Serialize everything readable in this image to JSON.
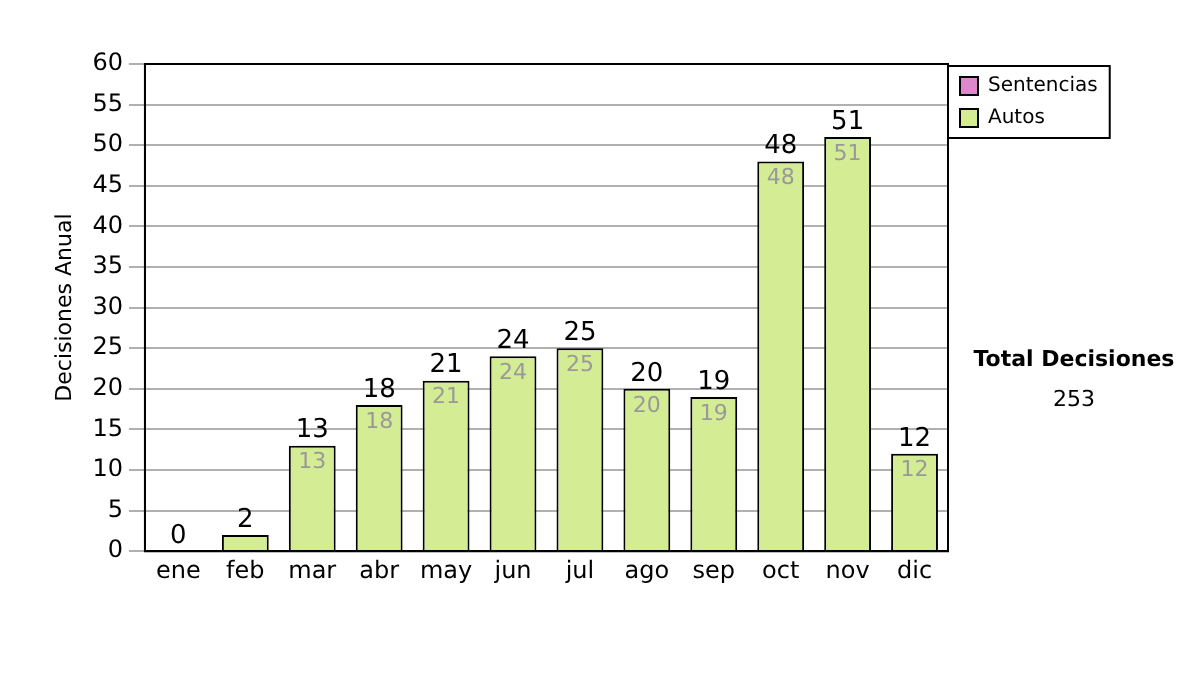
{
  "chart_data": {
    "type": "bar",
    "stacked": true,
    "ylabel": "Decisiones Anual",
    "categories": [
      "ene",
      "feb",
      "mar",
      "abr",
      "may",
      "jun",
      "jul",
      "ago",
      "sep",
      "oct",
      "nov",
      "dic"
    ],
    "series": [
      {
        "name": "Sentencias",
        "color": "#dd88cc",
        "values": [
          0,
          0,
          0,
          0,
          0,
          0,
          0,
          0,
          0,
          0,
          0,
          0
        ]
      },
      {
        "name": "Autos",
        "color": "#d4ec94",
        "values": [
          0,
          2,
          13,
          18,
          21,
          24,
          25,
          20,
          19,
          48,
          51,
          12
        ],
        "value_labels": [
          null,
          null,
          "13",
          "18",
          "21",
          "24",
          "25",
          "20",
          "19",
          "48",
          "51",
          "12"
        ]
      }
    ],
    "totals": [
      "0",
      "2",
      "13",
      "18",
      "21",
      "24",
      "25",
      "20",
      "19",
      "48",
      "51",
      "12"
    ],
    "ylim": [
      0,
      60
    ],
    "yticks": [
      0,
      5,
      10,
      15,
      20,
      25,
      30,
      35,
      40,
      45,
      50,
      55,
      60
    ],
    "grid": "y",
    "legend": "right",
    "annotations": [
      "Total Decisiones",
      "253"
    ]
  }
}
